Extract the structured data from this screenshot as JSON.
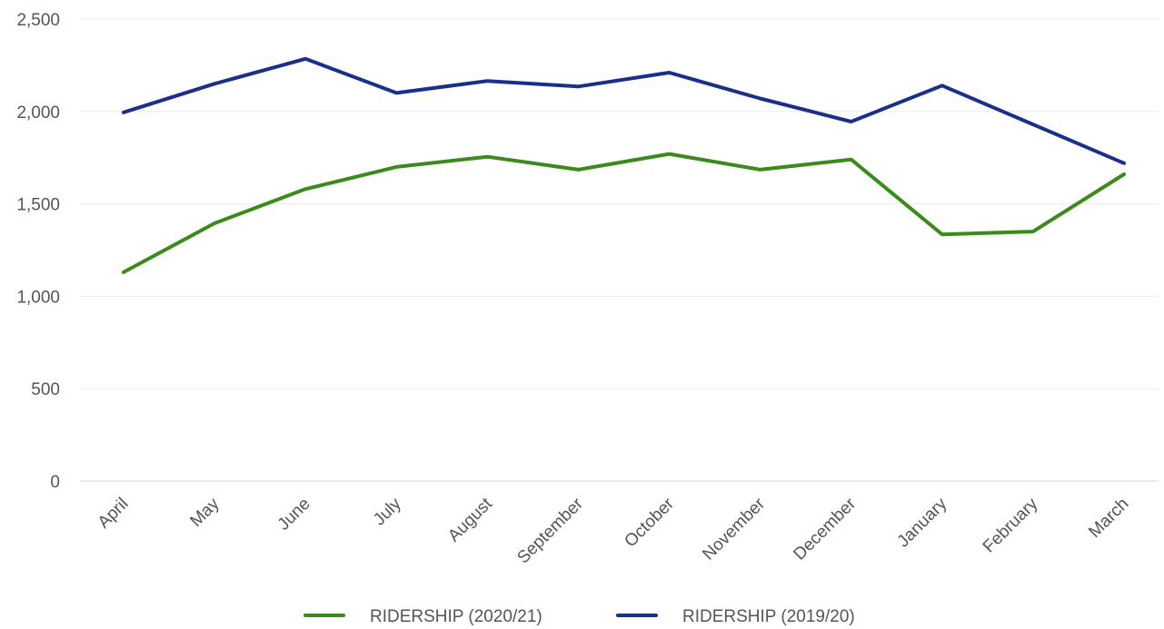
{
  "chart_data": {
    "type": "line",
    "categories": [
      "April",
      "May",
      "June",
      "July",
      "August",
      "September",
      "October",
      "November",
      "December",
      "January",
      "February",
      "March"
    ],
    "series": [
      {
        "name": "RIDERSHIP (2020/21)",
        "color": "#3a8a1c",
        "values": [
          1130,
          1395,
          1580,
          1700,
          1755,
          1685,
          1770,
          1685,
          1740,
          1335,
          1350,
          1660
        ]
      },
      {
        "name": "RIDERSHIP (2019/20)",
        "color": "#1a2f8a",
        "values": [
          1995,
          2150,
          2285,
          2100,
          2165,
          2135,
          2210,
          2070,
          1945,
          2140,
          1930,
          1720
        ]
      }
    ],
    "y_ticks": [
      "0",
      "500",
      "1,000",
      "1,500",
      "2,000",
      "2,500"
    ],
    "y_tick_values": [
      0,
      500,
      1000,
      1500,
      2000,
      2500
    ],
    "ylim": [
      0,
      2500
    ],
    "grid": true,
    "legend_position": "bottom",
    "title": "",
    "xlabel": "",
    "ylabel": ""
  }
}
